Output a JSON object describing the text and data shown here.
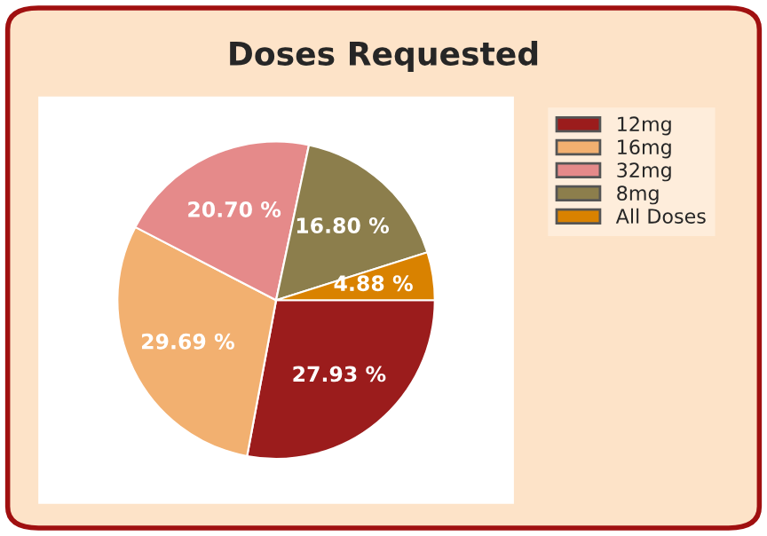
{
  "chart_data": {
    "type": "pie",
    "title": "Doses Requested",
    "categories": [
      "12mg",
      "16mg",
      "32mg",
      "8mg",
      "All Doses"
    ],
    "values": [
      27.93,
      29.69,
      20.7,
      16.8,
      4.88
    ],
    "value_labels": [
      "27.93 %",
      "29.69 %",
      "20.70 %",
      "16.80 %",
      "4.88 %"
    ],
    "colors": [
      "#9b1c1c",
      "#f2b070",
      "#e58a8a",
      "#8c7e4c",
      "#d98200"
    ],
    "legend": "right"
  }
}
